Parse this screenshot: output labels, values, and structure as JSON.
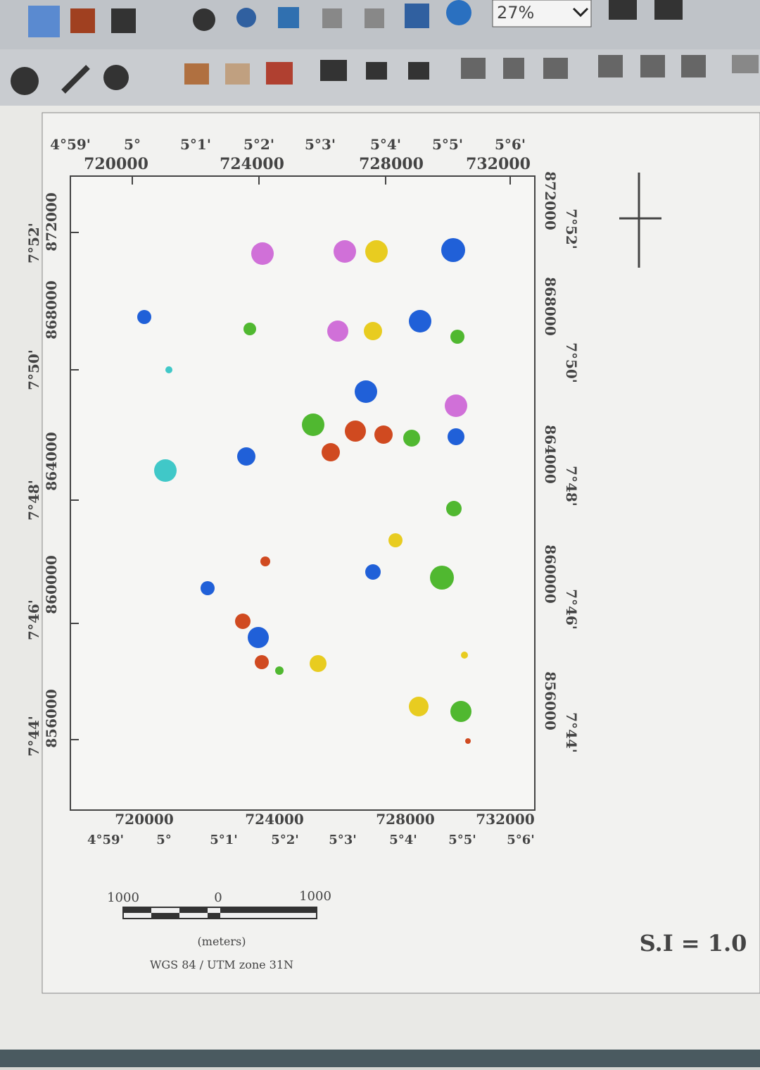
{
  "toolbar": {
    "zoom": "27%"
  },
  "map": {
    "top_labels": {
      "longitude": [
        "4°59'",
        "5°",
        "5°1'",
        "5°2'",
        "5°3'",
        "5°4'",
        "5°5'",
        "5°6'"
      ],
      "easting": [
        "720000",
        "724000",
        "728000",
        "732000"
      ]
    },
    "left_labels": {
      "latitude": [
        "7°52'",
        "7°50'",
        "7°48'",
        "7°46'",
        "7°44'"
      ],
      "northing": [
        "872000",
        "868000",
        "864000",
        "860000",
        "856000"
      ]
    },
    "right_labels": {
      "latitude": [
        "7°52'",
        "7°50'",
        "7°48'",
        "7°46'",
        "7°44'"
      ],
      "northing": [
        "872000",
        "868000",
        "864000",
        "860000",
        "856000"
      ]
    },
    "bottom_labels": {
      "longitude": [
        "4°59'",
        "5°",
        "5°1'",
        "5°2'",
        "5°3'",
        "5°4'",
        "5°5'",
        "5°6'"
      ],
      "easting": [
        "720000",
        "724000",
        "728000",
        "732000"
      ]
    }
  },
  "scale_bar": {
    "labels": [
      "1000",
      "0",
      "1000"
    ],
    "unit": "(meters)",
    "projection": "WGS 84 / UTM zone 31N"
  },
  "si_label": "S.I = 1.0"
}
